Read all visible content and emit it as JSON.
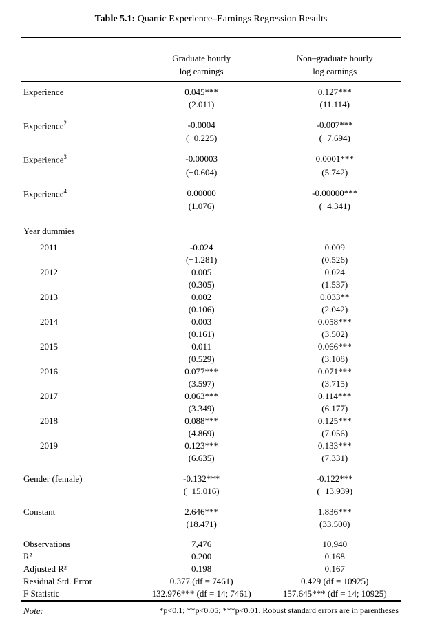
{
  "title_prefix": "Table 5.1:",
  "title_text": "Quartic Experience–Earnings Regression Results",
  "col1": "Graduate hourly",
  "col1b": "log earnings",
  "col2": "Non–graduate hourly",
  "col2b": "log earnings",
  "vars": [
    {
      "name": "Experience",
      "sup": "",
      "g": "0.045***",
      "gt": "(2.011)",
      "n": "0.127***",
      "nt": "(11.114)"
    },
    {
      "name": "Experience",
      "sup": "2",
      "g": "-0.0004",
      "gt": "(−0.225)",
      "n": "-0.007***",
      "nt": "(−7.694)"
    },
    {
      "name": "Experience",
      "sup": "3",
      "g": "-0.00003",
      "gt": "(−0.604)",
      "n": "0.0001***",
      "nt": "(5.742)"
    },
    {
      "name": "Experience",
      "sup": "4",
      "g": "0.00000",
      "gt": "(1.076)",
      "n": "-0.00000***",
      "nt": "(−4.341)"
    }
  ],
  "year_label": "Year dummies",
  "years": [
    {
      "y": "2011",
      "g": "-0.024",
      "gt": "(−1.281)",
      "n": "0.009",
      "nt": "(0.526)"
    },
    {
      "y": "2012",
      "g": "0.005",
      "gt": "(0.305)",
      "n": "0.024",
      "nt": "(1.537)"
    },
    {
      "y": "2013",
      "g": "0.002",
      "gt": "(0.106)",
      "n": "0.033**",
      "nt": "(2.042)"
    },
    {
      "y": "2014",
      "g": "0.003",
      "gt": "(0.161)",
      "n": "0.058***",
      "nt": "(3.502)"
    },
    {
      "y": "2015",
      "g": "0.011",
      "gt": "(0.529)",
      "n": "0.066***",
      "nt": "(3.108)"
    },
    {
      "y": "2016",
      "g": "0.077***",
      "gt": "(3.597)",
      "n": "0.071***",
      "nt": "(3.715)"
    },
    {
      "y": "2017",
      "g": "0.063***",
      "gt": "(3.349)",
      "n": "0.114***",
      "nt": "(6.177)"
    },
    {
      "y": "2018",
      "g": "0.088***",
      "gt": "(4.869)",
      "n": "0.125***",
      "nt": "(7.056)"
    },
    {
      "y": "2019",
      "g": "0.123***",
      "gt": "(6.635)",
      "n": "0.133***",
      "nt": "(7.331)"
    }
  ],
  "gender": {
    "name": "Gender (female)",
    "g": "-0.132***",
    "gt": "(−15.016)",
    "n": "-0.122***",
    "nt": "(−13.939)"
  },
  "const": {
    "name": "Constant",
    "g": "2.646***",
    "gt": "(18.471)",
    "n": "1.836***",
    "nt": "(33.500)"
  },
  "stats": [
    {
      "l": "Observations",
      "g": "7,476",
      "n": "10,940"
    },
    {
      "l": "R²",
      "g": "0.200",
      "n": "0.168"
    },
    {
      "l": "Adjusted R²",
      "g": "0.198",
      "n": "0.167"
    },
    {
      "l": "Residual Std. Error",
      "g": "0.377 (df = 7461)",
      "n": "0.429 (df = 10925)"
    },
    {
      "l": "F Statistic",
      "g": "132.976*** (df = 14; 7461)",
      "n": "157.645*** (df = 14; 10925)"
    }
  ],
  "note_label": "Note:",
  "note_text": "*p<0.1; **p<0.05; ***p<0.01. Robust standard errors are in parentheses"
}
